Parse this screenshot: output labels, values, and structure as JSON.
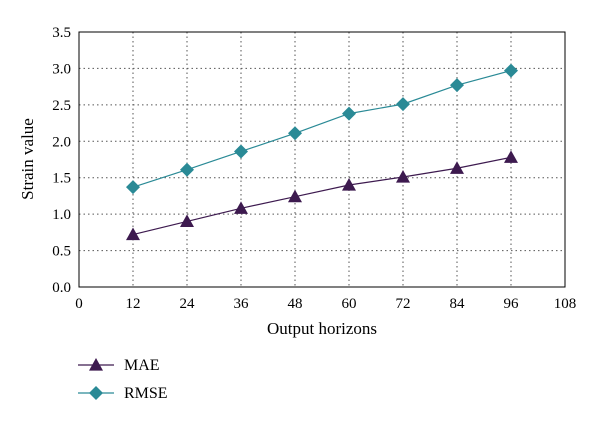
{
  "chart_data": {
    "type": "line",
    "title": "",
    "xlabel": "Output horizons",
    "ylabel": "Strain value",
    "x": [
      12,
      24,
      36,
      48,
      60,
      72,
      84,
      96
    ],
    "xlim": [
      0,
      108
    ],
    "ylim": [
      0,
      3.5
    ],
    "x_ticks": [
      "0",
      "12",
      "24",
      "36",
      "48",
      "60",
      "72",
      "84",
      "96",
      "108"
    ],
    "y_ticks": [
      "0.0",
      "0.5",
      "1.0",
      "1.5",
      "2.0",
      "2.5",
      "3.0",
      "3.5"
    ],
    "grid": true,
    "legend_position": "bottom-left",
    "series": [
      {
        "name": "MAE",
        "marker": "triangle",
        "color": "#3d1a4f",
        "values": [
          0.72,
          0.9,
          1.08,
          1.24,
          1.4,
          1.51,
          1.63,
          1.78
        ]
      },
      {
        "name": "RMSE",
        "marker": "diamond",
        "color": "#2a8a96",
        "values": [
          1.37,
          1.61,
          1.86,
          2.11,
          2.38,
          2.51,
          2.77,
          2.97
        ]
      }
    ]
  }
}
